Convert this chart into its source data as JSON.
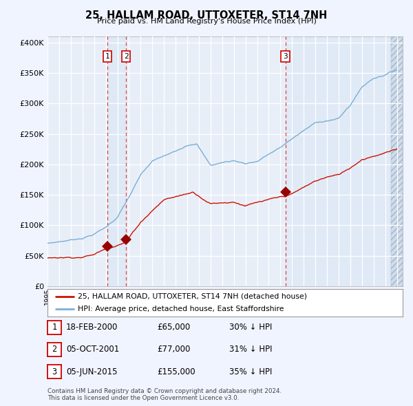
{
  "title": "25, HALLAM ROAD, UTTOXETER, ST14 7NH",
  "subtitle": "Price paid vs. HM Land Registry's House Price Index (HPI)",
  "ylim": [
    0,
    410000
  ],
  "yticks": [
    0,
    50000,
    100000,
    150000,
    200000,
    250000,
    300000,
    350000,
    400000
  ],
  "xlim_start": 1995.0,
  "xlim_end": 2025.5,
  "background_color": "#f0f4ff",
  "plot_bg_color": "#e8eef8",
  "grid_color": "#ffffff",
  "hpi_line_color": "#7aaed6",
  "price_line_color": "#cc1100",
  "sale_marker_color": "#990000",
  "sale_marker_size": 8,
  "vline_color": "#dd2222",
  "vline_shade_color": "#dce8f5",
  "hatch_region_color": "#d0dcea",
  "sale_dates_decimal": [
    2000.122,
    2001.756,
    2015.427
  ],
  "sale_prices": [
    65000,
    77000,
    155000
  ],
  "sale_labels": [
    "1",
    "2",
    "3"
  ],
  "footer_text": "Contains HM Land Registry data © Crown copyright and database right 2024.\nThis data is licensed under the Open Government Licence v3.0.",
  "legend_line1": "25, HALLAM ROAD, UTTOXETER, ST14 7NH (detached house)",
  "legend_line2": "HPI: Average price, detached house, East Staffordshire",
  "table_rows": [
    {
      "num": "1",
      "date": "18-FEB-2000",
      "price": "£65,000",
      "pct": "30% ↓ HPI"
    },
    {
      "num": "2",
      "date": "05-OCT-2001",
      "price": "£77,000",
      "pct": "31% ↓ HPI"
    },
    {
      "num": "3",
      "date": "05-JUN-2015",
      "price": "£155,000",
      "pct": "35% ↓ HPI"
    }
  ]
}
